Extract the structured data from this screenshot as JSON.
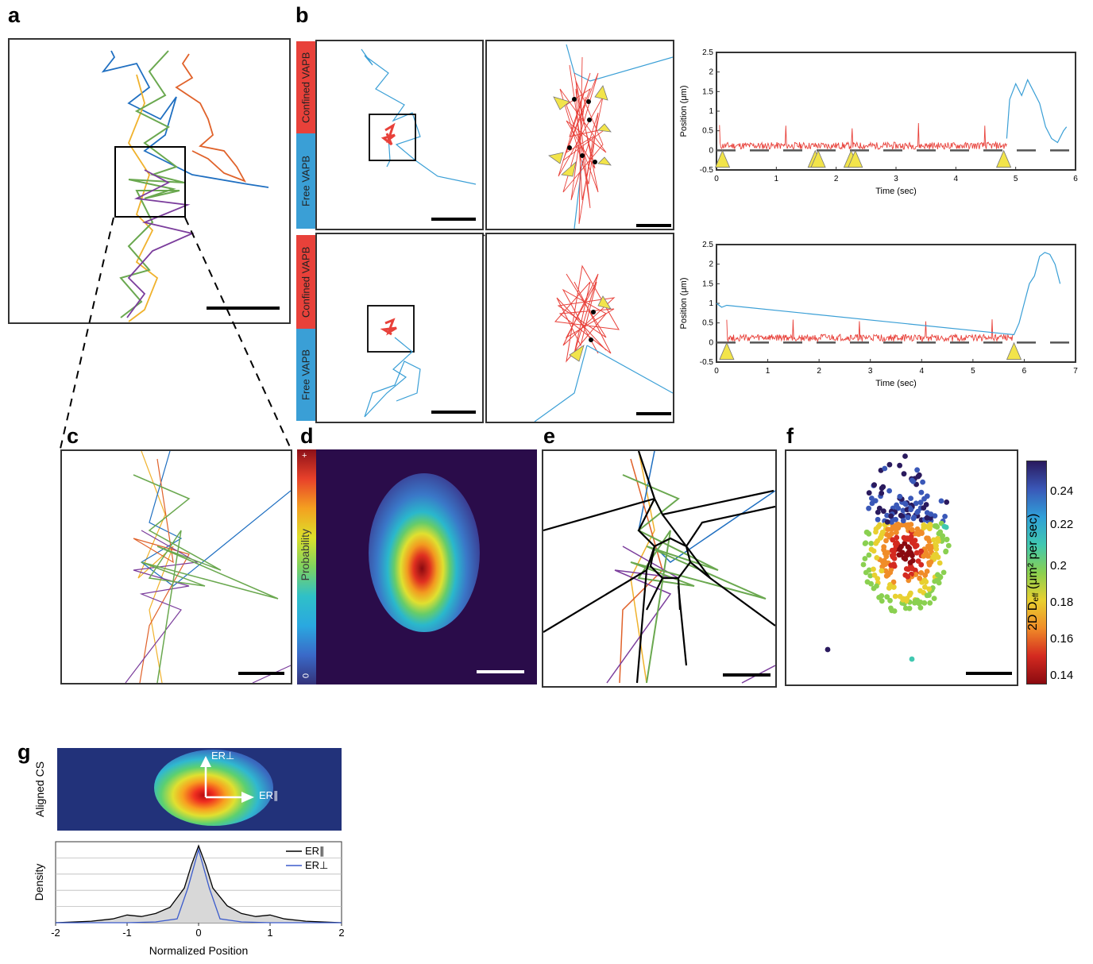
{
  "panels": {
    "a": "a",
    "b": "b",
    "c": "c",
    "d": "d",
    "e": "e",
    "f": "f",
    "g": "g"
  },
  "b_labels": {
    "confined": "Confined VAPB",
    "free": "Free VAPB"
  },
  "d_colorbar": {
    "label": "Probability",
    "top": "+",
    "bottom": "0"
  },
  "f_colorbar": {
    "label_main": "2D D",
    "label_sub": "eff",
    "label_unit": " (μm² per sec)",
    "ticks": [
      "0.24",
      "0.22",
      "0.2",
      "0.18",
      "0.16",
      "0.14"
    ]
  },
  "g_map": {
    "ylabel": "Aligned CS",
    "er_perp": "ER⊥",
    "er_par": "ER∥"
  },
  "colors": {
    "confined": "#e8413a",
    "free": "#3a9fd6",
    "arrow": "#f2e44a",
    "dashed": "#555555"
  },
  "chart_data": [
    {
      "type": "line",
      "title": "",
      "xlabel": "Time  (sec)",
      "ylabel": "Position (μm)",
      "xlim": [
        0,
        6
      ],
      "ylim": [
        -0.5,
        2.5
      ],
      "xticks": [
        "0",
        "1",
        "2",
        "3",
        "4",
        "5",
        "6"
      ],
      "yticks": [
        "-0.5",
        "0",
        "0.5",
        "1",
        "1.5",
        "2",
        "2.5"
      ],
      "series": [
        {
          "segment": "confined",
          "x": [
            0.05,
            4.85
          ],
          "baseline": 0.1
        },
        {
          "segment": "free",
          "x": [
            4.85,
            5.85
          ],
          "x_values": [
            4.85,
            4.9,
            5.0,
            5.1,
            5.2,
            5.3,
            5.4,
            5.5,
            5.6,
            5.7,
            5.8,
            5.85
          ],
          "y_values": [
            0.3,
            1.3,
            1.7,
            1.4,
            1.8,
            1.5,
            1.2,
            0.6,
            0.3,
            0.2,
            0.5,
            0.6
          ]
        }
      ],
      "arrow_times": [
        0.1,
        1.65,
        1.7,
        2.25,
        2.32,
        4.8
      ]
    },
    {
      "type": "line",
      "title": "",
      "xlabel": "Time  (sec)",
      "ylabel": "Position (μm)",
      "xlim": [
        0,
        7
      ],
      "ylim": [
        -0.5,
        2.5
      ],
      "xticks": [
        "0",
        "1",
        "2",
        "3",
        "4",
        "5",
        "6",
        "7"
      ],
      "yticks": [
        "-0.5",
        "0",
        "0.5",
        "1",
        "1.5",
        "2",
        "2.5"
      ],
      "series": [
        {
          "segment": "confined",
          "x": [
            0.2,
            5.8
          ],
          "baseline": 0.1
        },
        {
          "segment": "free",
          "x_values": [
            0,
            0.1,
            0.2,
            5.8,
            5.9,
            6.0,
            6.1,
            6.2,
            6.3,
            6.4,
            6.5,
            6.6,
            6.7
          ],
          "y_values": [
            1.0,
            0.9,
            0.95,
            0.2,
            0.5,
            1.0,
            1.5,
            1.7,
            2.2,
            2.3,
            2.25,
            2.0,
            1.5
          ]
        }
      ],
      "arrow_times": [
        0.2,
        5.8
      ]
    },
    {
      "type": "line",
      "title": "",
      "xlabel": "Normalized Position",
      "ylabel": "Density",
      "xlim": [
        -2,
        2
      ],
      "xticks": [
        "-2",
        "-1",
        "0",
        "1",
        "2"
      ],
      "legend": "top-right",
      "series": [
        {
          "name": "ER∥",
          "color": "#000000",
          "x": [
            -2,
            -1.5,
            -1.2,
            -1.0,
            -0.8,
            -0.6,
            -0.4,
            -0.2,
            -0.1,
            0,
            0.1,
            0.2,
            0.4,
            0.6,
            0.8,
            1.0,
            1.2,
            1.5,
            2
          ],
          "y": [
            0.0,
            0.02,
            0.05,
            0.1,
            0.08,
            0.12,
            0.2,
            0.45,
            0.75,
            1.0,
            0.75,
            0.45,
            0.22,
            0.12,
            0.08,
            0.1,
            0.05,
            0.02,
            0.0
          ]
        },
        {
          "name": "ER⊥",
          "color": "#3b5bcc",
          "x": [
            -2,
            -1.0,
            -0.6,
            -0.3,
            -0.15,
            0,
            0.15,
            0.3,
            0.6,
            1.0,
            2
          ],
          "y": [
            0.0,
            0.0,
            0.01,
            0.05,
            0.45,
            0.95,
            0.45,
            0.05,
            0.01,
            0.0,
            0.0
          ]
        }
      ]
    }
  ]
}
